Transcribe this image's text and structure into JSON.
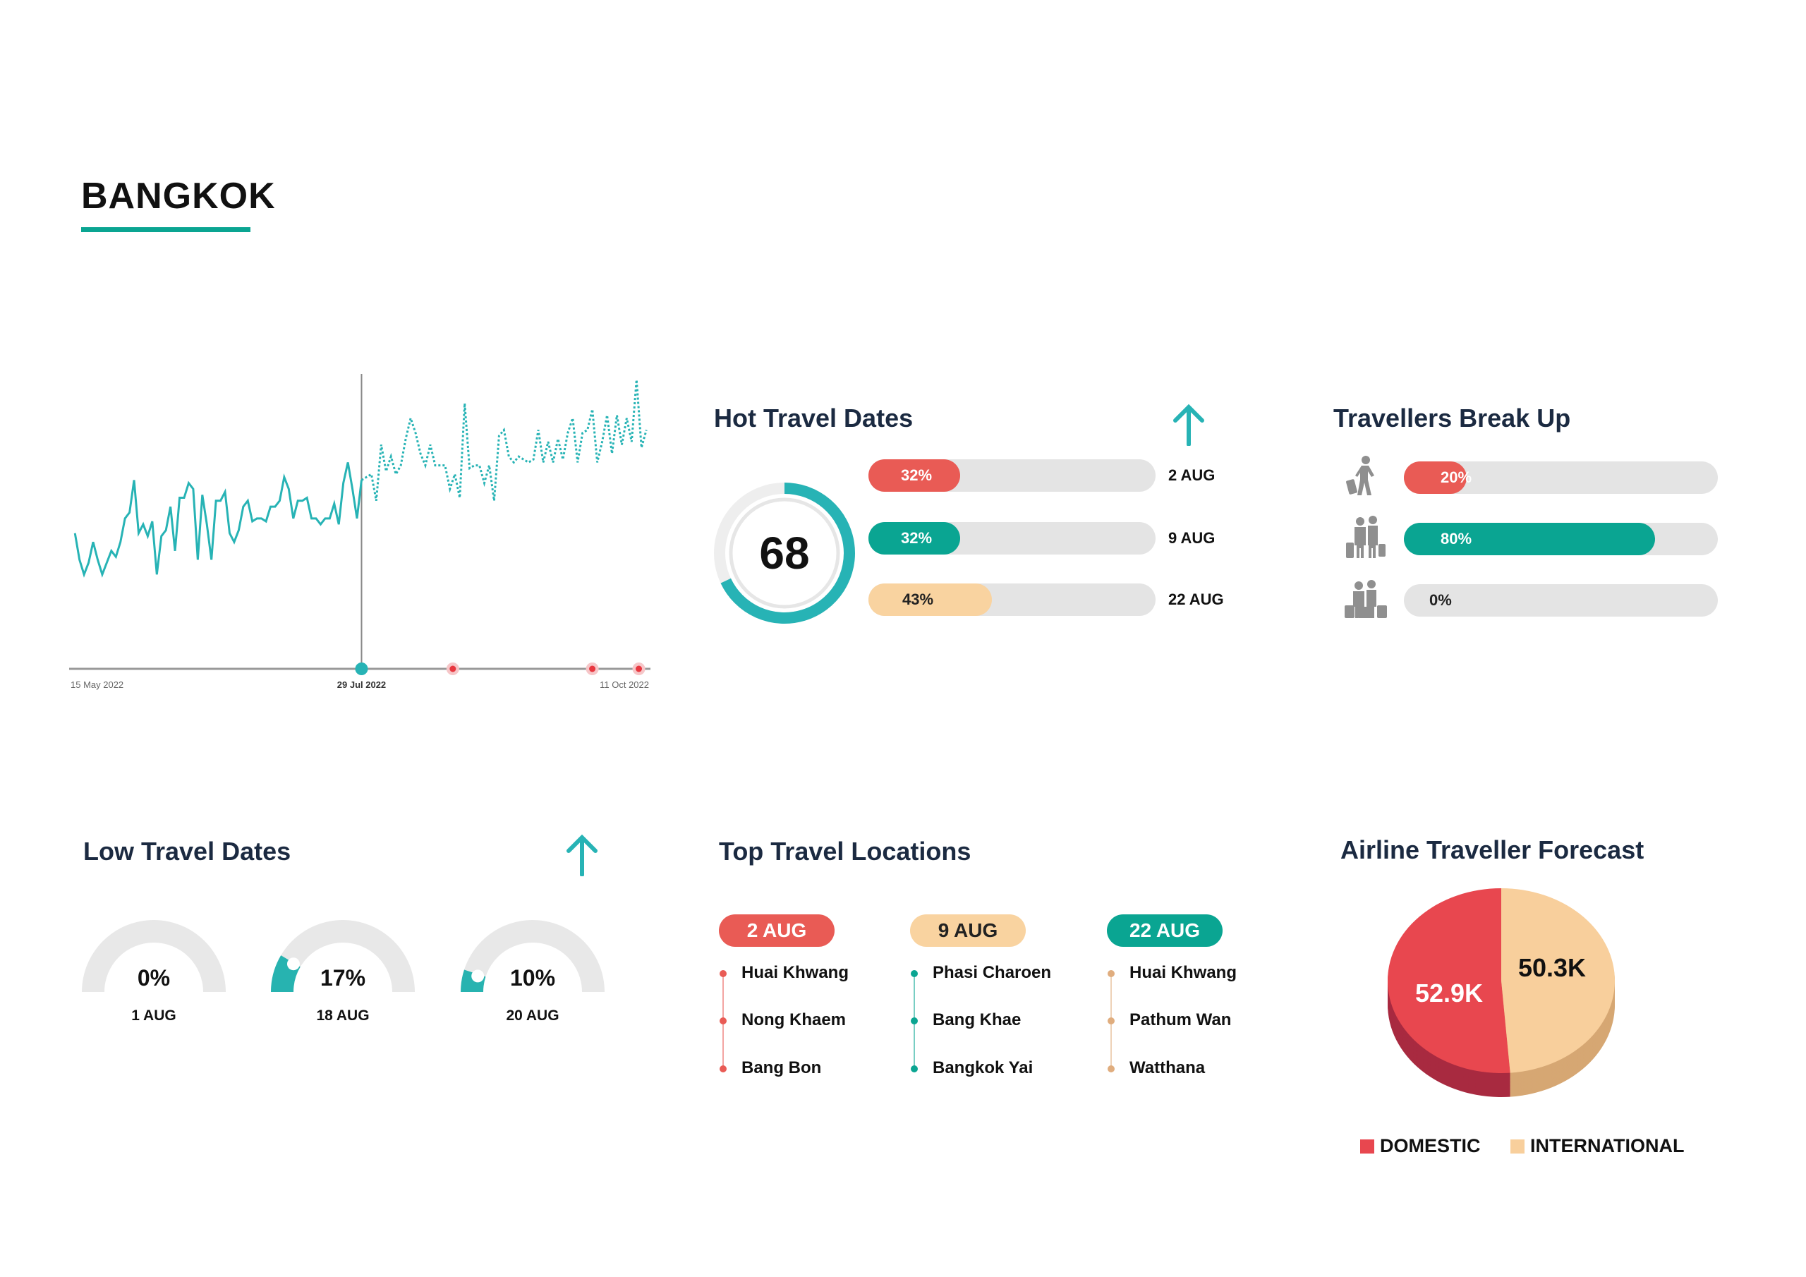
{
  "page": {
    "title": "BANGKOK",
    "accent": "#0aa592"
  },
  "trend_chart": {
    "type": "line",
    "x_labels": [
      "15 May 2022",
      "29 Jul 2022",
      "11 Oct 2022"
    ],
    "actual_values": [
      46,
      37,
      32,
      36,
      43,
      37,
      32,
      36,
      40,
      38,
      43,
      51,
      53,
      64,
      46,
      49,
      45,
      50,
      32,
      45,
      47,
      55,
      40,
      58,
      58,
      63,
      61,
      37,
      59,
      49,
      37,
      57,
      57,
      60,
      46,
      43,
      47,
      55,
      57,
      50,
      51,
      51,
      50,
      55,
      55,
      57,
      65,
      61,
      51,
      57,
      57,
      58,
      51,
      51,
      49,
      51,
      51,
      56,
      49,
      63,
      70,
      61,
      51,
      64
    ],
    "forecast_values": [
      65,
      66,
      57,
      76,
      67,
      72,
      66,
      69,
      78,
      85,
      80,
      73,
      69,
      76,
      69,
      69,
      69,
      61,
      66,
      58,
      90,
      68,
      69,
      69,
      63,
      69,
      57,
      79,
      81,
      72,
      70,
      72,
      71,
      70,
      71,
      81,
      70,
      77,
      70,
      78,
      71,
      80,
      85,
      70,
      80,
      81,
      88,
      70,
      77,
      86,
      73,
      86,
      76,
      85,
      77,
      98,
      75,
      81
    ],
    "split_date": "29 Jul 2022",
    "event_markers": [
      "21 Aug 2022",
      "26 Sep 2022",
      "8 Oct 2022"
    ],
    "line_color": "#27b3b5",
    "marker_color": "#e8373f"
  },
  "hot_travel": {
    "title": "Hot Travel Dates",
    "trend_icon": "arrow-up-icon",
    "score": "68",
    "score_fraction": 0.68,
    "bars": [
      {
        "pct": 32,
        "label": "32%",
        "date": "2 AUG",
        "color": "#e95b55",
        "text_color": "#ffffff"
      },
      {
        "pct": 32,
        "label": "32%",
        "date": "9 AUG",
        "color": "#0aa592",
        "text_color": "#ffffff"
      },
      {
        "pct": 43,
        "label": "43%",
        "date": "22 AUG",
        "color": "#f9d3a0",
        "text_color": "#222222"
      }
    ]
  },
  "travellers": {
    "title": "Travellers Break Up",
    "rows": [
      {
        "icon": "solo-traveller-icon",
        "pct": 20,
        "label": "20%",
        "color": "#e95b55"
      },
      {
        "icon": "couple-traveller-icon",
        "pct": 80,
        "label": "80%",
        "color": "#0aa592"
      },
      {
        "icon": "family-traveller-icon",
        "pct": 0,
        "label": "0%",
        "color": "#e4e4e4"
      }
    ]
  },
  "low_travel": {
    "title": "Low Travel Dates",
    "trend_icon": "arrow-up-icon",
    "gauges": [
      {
        "pct": 0,
        "label": "0%",
        "date": "1 AUG"
      },
      {
        "pct": 17,
        "label": "17%",
        "date": "18 AUG"
      },
      {
        "pct": 10,
        "label": "10%",
        "date": "20 AUG"
      }
    ]
  },
  "top_locations": {
    "title": "Top Travel Locations",
    "columns": [
      {
        "date": "2 AUG",
        "color": "#e95b55",
        "text_color": "#ffffff",
        "dot": "#e95b55",
        "items": [
          "Huai Khwang",
          "Nong Khaem",
          "Bang Bon"
        ]
      },
      {
        "date": "9 AUG",
        "color": "#f9d3a0",
        "text_color": "#222222",
        "dot": "#0aa592",
        "items": [
          "Phasi Charoen",
          "Bang Khae",
          "Bangkok Yai"
        ]
      },
      {
        "date": "22 AUG",
        "color": "#0aa592",
        "text_color": "#ffffff",
        "dot": "#e0ad7e",
        "items": [
          "Huai Khwang",
          "Pathum Wan",
          "Watthana"
        ]
      }
    ]
  },
  "forecast": {
    "title": "Airline Traveller Forecast",
    "chart_data": {
      "type": "pie",
      "slices": [
        {
          "name": "DOMESTIC",
          "value": 52.9,
          "label": "52.9K",
          "color": "#e8474f",
          "side": "#a82a40"
        },
        {
          "name": "INTERNATIONAL",
          "value": 50.3,
          "label": "50.3K",
          "color": "#f8cf9c",
          "side": "#d6a773"
        }
      ],
      "legend": "bottom"
    }
  }
}
